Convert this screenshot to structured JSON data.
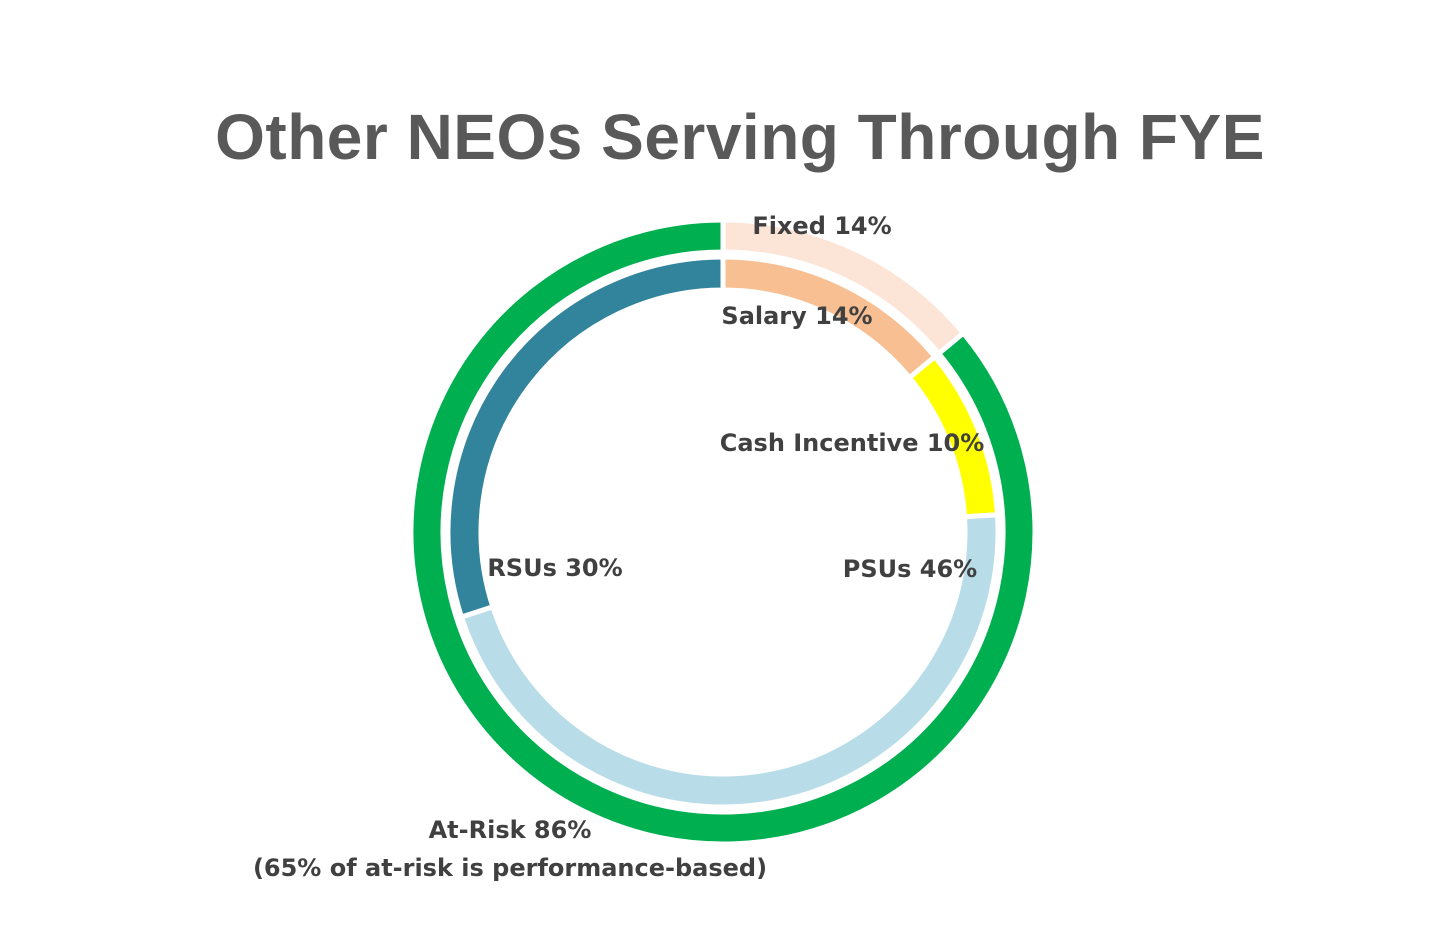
{
  "chart_data": {
    "type": "pie",
    "title": "Other NEOs Serving Through FYE",
    "rings": [
      {
        "ring": "outer",
        "slices": [
          {
            "label": "Fixed 14%",
            "value": 14,
            "color": "#FCE4D6"
          },
          {
            "label": "At-Risk 86%",
            "sublabel": "(65% of at-risk is performance-based)",
            "value": 86,
            "color": "#00B050"
          }
        ]
      },
      {
        "ring": "inner",
        "slices": [
          {
            "label": "Salary 14%",
            "value": 14,
            "color": "#F8C092"
          },
          {
            "label": "Cash Incentive 10%",
            "value": 10,
            "color": "#FFFF00"
          },
          {
            "label": "PSUs 46%",
            "value": 46,
            "color": "#B8DDE8"
          },
          {
            "label": "RSUs 30%",
            "value": 30,
            "color": "#31849B"
          }
        ]
      }
    ]
  }
}
